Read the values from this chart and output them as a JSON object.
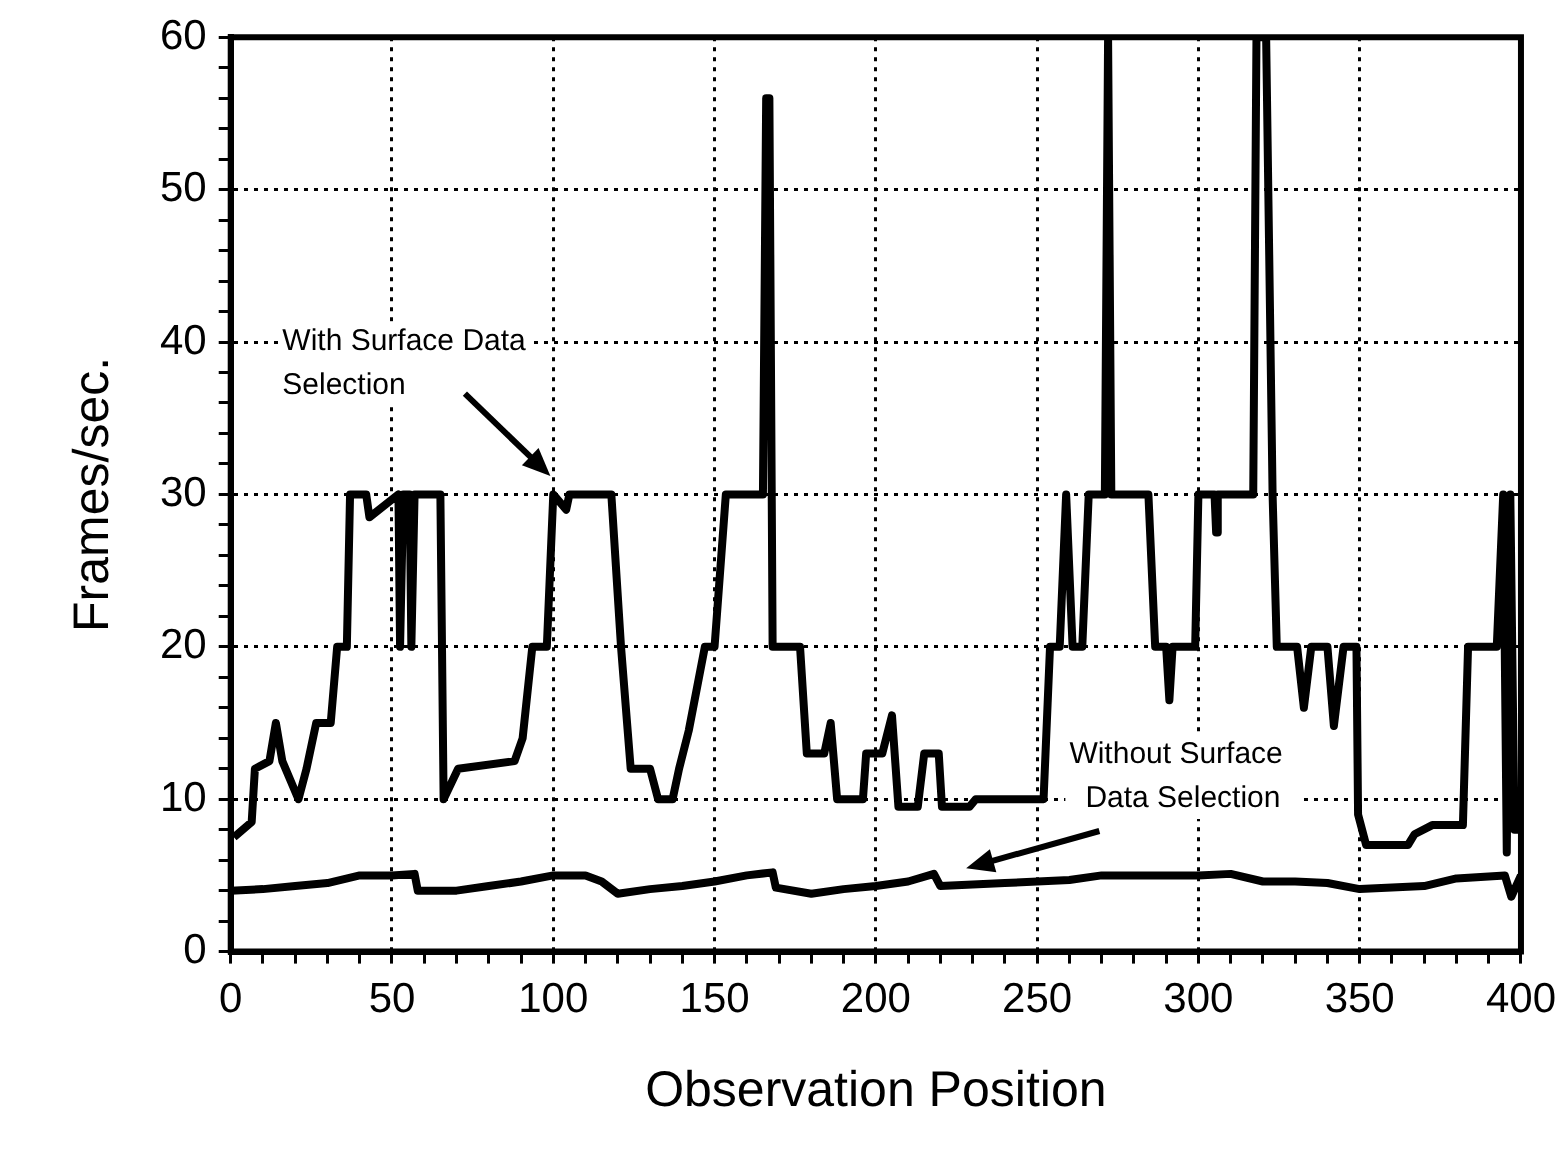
{
  "chart_data": {
    "type": "line",
    "xlabel": "Observation Position",
    "ylabel": "Frames/sec.",
    "xlim": [
      0,
      400
    ],
    "ylim": [
      0,
      60
    ],
    "xticks": [
      0,
      {
        "value": 10,
        "label": null
      },
      {
        "value": 20,
        "label": null
      },
      {
        "value": 30,
        "label": null
      },
      {
        "value": 40,
        "label": null
      },
      50,
      {
        "value": 60,
        "label": null
      },
      {
        "value": 70,
        "label": null
      },
      {
        "value": 80,
        "label": null
      },
      {
        "value": 90,
        "label": null
      },
      100,
      {
        "value": 110,
        "label": null
      },
      {
        "value": 120,
        "label": null
      },
      {
        "value": 130,
        "label": null
      },
      {
        "value": 140,
        "label": null
      },
      150,
      {
        "value": 160,
        "label": null
      },
      {
        "value": 170,
        "label": null
      },
      {
        "value": 180,
        "label": null
      },
      {
        "value": 190,
        "label": null
      },
      200,
      {
        "value": 210,
        "label": null
      },
      {
        "value": 220,
        "label": null
      },
      {
        "value": 230,
        "label": null
      },
      {
        "value": 240,
        "label": null
      },
      250,
      {
        "value": 260,
        "label": null
      },
      {
        "value": 270,
        "label": null
      },
      {
        "value": 280,
        "label": null
      },
      {
        "value": 290,
        "label": null
      },
      300,
      {
        "value": 310,
        "label": null
      },
      {
        "value": 320,
        "label": null
      },
      {
        "value": 330,
        "label": null
      },
      {
        "value": 340,
        "label": null
      },
      350,
      {
        "value": 360,
        "label": null
      },
      {
        "value": 370,
        "label": null
      },
      {
        "value": 380,
        "label": null
      },
      {
        "value": 390,
        "label": null
      },
      400
    ],
    "yticks": [
      0,
      {
        "value": 2,
        "label": null
      },
      {
        "value": 4,
        "label": null
      },
      {
        "value": 6,
        "label": null
      },
      {
        "value": 8,
        "label": null
      },
      10,
      {
        "value": 12,
        "label": null
      },
      {
        "value": 14,
        "label": null
      },
      {
        "value": 16,
        "label": null
      },
      {
        "value": 18,
        "label": null
      },
      20,
      {
        "value": 22,
        "label": null
      },
      {
        "value": 24,
        "label": null
      },
      {
        "value": 26,
        "label": null
      },
      {
        "value": 28,
        "label": null
      },
      30,
      {
        "value": 32,
        "label": null
      },
      {
        "value": 34,
        "label": null
      },
      {
        "value": 36,
        "label": null
      },
      {
        "value": 38,
        "label": null
      },
      40,
      {
        "value": 42,
        "label": null
      },
      {
        "value": 44,
        "label": null
      },
      {
        "value": 46,
        "label": null
      },
      {
        "value": 48,
        "label": null
      },
      50,
      {
        "value": 52,
        "label": null
      },
      {
        "value": 54,
        "label": null
      },
      {
        "value": 56,
        "label": null
      },
      {
        "value": 58,
        "label": null
      },
      60
    ],
    "grid": true,
    "legend": false,
    "marker": "none",
    "line_style": "solid",
    "series": [
      {
        "color": "#000000",
        "x": [
          1,
          6.5,
          7.5,
          12,
          14,
          16,
          21,
          23.5,
          26.5,
          31,
          33,
          36,
          37,
          42,
          43,
          52,
          52.5,
          53.5,
          55.5,
          56,
          57,
          65,
          66,
          70.5,
          88,
          90.5,
          93.5,
          98,
          100,
          104,
          105,
          118,
          121,
          124,
          130,
          132.5,
          137,
          139,
          142,
          147,
          150,
          153.5,
          165,
          166,
          167,
          168,
          176.5,
          178.6,
          184,
          186,
          188,
          196,
          197,
          202,
          205,
          207,
          213,
          215,
          219.5,
          220.5,
          229,
          231,
          252,
          254,
          257,
          259,
          261,
          264,
          266,
          271,
          272,
          273,
          284.5,
          286.6,
          290,
          291,
          292,
          299,
          300,
          305,
          305.5,
          306,
          317,
          318,
          321,
          323,
          324.3,
          330.6,
          332.7,
          335,
          340,
          342,
          345,
          349,
          349.5,
          352,
          365,
          367,
          372.5,
          382,
          383.6,
          392.5,
          394.5,
          395.6,
          396.7,
          398,
          400
        ],
        "values": [
          7.5,
          8.5,
          12,
          12.5,
          15,
          12.5,
          10,
          12,
          15,
          15,
          20,
          20,
          30,
          30,
          28.5,
          30,
          20,
          30,
          30,
          20,
          30,
          30,
          10,
          12,
          12.5,
          14,
          20,
          20,
          30,
          29,
          30,
          30,
          20,
          12,
          12,
          10,
          10,
          12,
          14.5,
          20,
          20,
          30,
          30,
          56,
          56,
          20,
          20,
          13,
          13,
          15,
          10,
          10,
          13,
          13,
          15.5,
          9.5,
          9.5,
          13,
          13,
          9.5,
          9.5,
          10,
          10,
          20,
          20,
          30,
          20,
          20,
          30,
          30,
          60,
          30,
          30,
          20,
          20,
          16.5,
          20,
          20,
          30,
          30,
          27.5,
          30,
          30,
          60,
          60,
          30,
          20,
          20,
          16,
          20,
          20,
          14.8,
          20,
          20,
          9,
          7,
          7,
          7.7,
          8.3,
          8.3,
          20,
          20,
          30,
          6.5,
          30,
          8,
          8
        ]
      },
      {
        "color": "#000000",
        "x": [
          0,
          10,
          20,
          30,
          40,
          50,
          57,
          58,
          70,
          80,
          90,
          100,
          110,
          115,
          120,
          130,
          140,
          150,
          160,
          168,
          169,
          180,
          190,
          200,
          210,
          218,
          220,
          240,
          260,
          270,
          290,
          300,
          310,
          320,
          330,
          340,
          350,
          370,
          380,
          395,
          397,
          400
        ],
        "values": [
          4,
          4.1,
          4.3,
          4.5,
          5,
          5,
          5.1,
          4,
          4,
          4.3,
          4.6,
          5,
          5,
          4.6,
          3.8,
          4.1,
          4.3,
          4.6,
          5,
          5.2,
          4.2,
          3.8,
          4.1,
          4.3,
          4.6,
          5.1,
          4.3,
          4.5,
          4.7,
          5,
          5,
          5,
          5.1,
          4.6,
          4.6,
          4.5,
          4.1,
          4.3,
          4.8,
          5,
          3.6,
          5
        ]
      }
    ],
    "annotations": [
      "With Surface Data Selection",
      "Without Surface Data Selection"
    ]
  }
}
